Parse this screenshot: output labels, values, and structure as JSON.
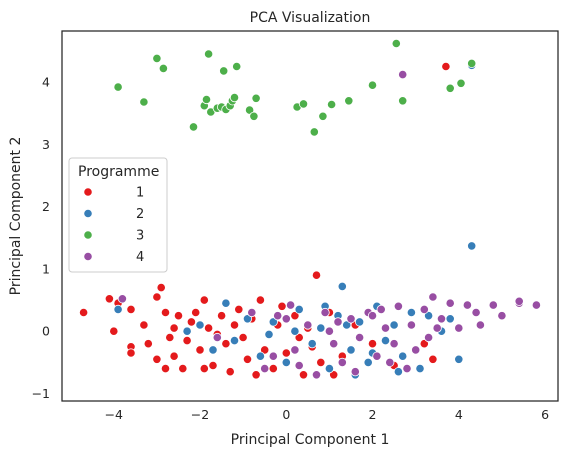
{
  "chart_data": {
    "type": "scatter",
    "title": "PCA Visualization",
    "xlabel": "Principal Component 1",
    "ylabel": "Principal Component 2",
    "xlim": [
      -5.2,
      6.3
    ],
    "ylim": [
      -1.12,
      4.82
    ],
    "xticks": [
      -4,
      -2,
      0,
      2,
      4,
      6
    ],
    "yticks": [
      -1,
      0,
      1,
      2,
      3,
      4
    ],
    "grid": false,
    "legend": {
      "title": "Programme",
      "placement": "center-left"
    },
    "series": [
      {
        "name": "1",
        "color": "#e41a1c",
        "points": [
          [
            -4.7,
            0.3
          ],
          [
            -4.1,
            0.52
          ],
          [
            -4.0,
            0.0
          ],
          [
            -3.9,
            0.45
          ],
          [
            -3.6,
            0.35
          ],
          [
            -3.6,
            -0.25
          ],
          [
            -3.6,
            -0.35
          ],
          [
            -3.0,
            0.55
          ],
          [
            -2.9,
            0.7
          ],
          [
            -2.8,
            0.3
          ],
          [
            -2.7,
            -0.1
          ],
          [
            -2.6,
            -0.4
          ],
          [
            -2.5,
            0.25
          ],
          [
            -2.4,
            -0.6
          ],
          [
            -2.2,
            0.15
          ],
          [
            -2.0,
            -0.3
          ],
          [
            -1.9,
            0.5
          ],
          [
            -1.8,
            0.05
          ],
          [
            -1.7,
            -0.55
          ],
          [
            -1.5,
            0.25
          ],
          [
            -1.4,
            -0.2
          ],
          [
            -1.3,
            -0.65
          ],
          [
            -1.1,
            0.35
          ],
          [
            -1.0,
            -0.1
          ],
          [
            -0.9,
            -0.45
          ],
          [
            -0.8,
            0.2
          ],
          [
            -0.6,
            0.5
          ],
          [
            -0.5,
            -0.3
          ],
          [
            -0.3,
            -0.6
          ],
          [
            -0.2,
            0.1
          ],
          [
            0.0,
            -0.35
          ],
          [
            0.2,
            0.25
          ],
          [
            0.4,
            -0.7
          ],
          [
            0.5,
            0.05
          ],
          [
            0.7,
            0.9
          ],
          [
            0.8,
            -0.5
          ],
          [
            1.0,
            0.3
          ],
          [
            1.3,
            -0.4
          ],
          [
            1.6,
            0.1
          ],
          [
            2.0,
            -0.2
          ],
          [
            2.5,
            -0.55
          ],
          [
            3.2,
            -0.2
          ],
          [
            3.4,
            -0.45
          ],
          [
            3.7,
            4.25
          ],
          [
            -3.3,
            0.1
          ],
          [
            -3.2,
            -0.2
          ],
          [
            -3.0,
            -0.45
          ],
          [
            -2.8,
            -0.6
          ],
          [
            -2.6,
            0.05
          ],
          [
            -2.3,
            -0.15
          ],
          [
            -2.1,
            0.3
          ],
          [
            -1.9,
            -0.6
          ],
          [
            -1.6,
            -0.05
          ],
          [
            -1.2,
            0.1
          ],
          [
            -0.7,
            -0.7
          ],
          [
            -0.1,
            0.4
          ],
          [
            0.3,
            -0.1
          ],
          [
            0.6,
            -0.25
          ],
          [
            1.1,
            -0.7
          ]
        ]
      },
      {
        "name": "2",
        "color": "#377eb8",
        "points": [
          [
            -3.9,
            0.35
          ],
          [
            -2.0,
            0.1
          ],
          [
            -1.4,
            0.45
          ],
          [
            -1.2,
            -0.15
          ],
          [
            -0.9,
            0.2
          ],
          [
            -0.6,
            -0.4
          ],
          [
            -0.3,
            0.15
          ],
          [
            0.0,
            -0.5
          ],
          [
            0.3,
            0.35
          ],
          [
            0.6,
            -0.2
          ],
          [
            0.8,
            0.05
          ],
          [
            1.0,
            -0.6
          ],
          [
            1.2,
            0.25
          ],
          [
            1.3,
            0.72
          ],
          [
            1.5,
            -0.3
          ],
          [
            1.7,
            0.15
          ],
          [
            1.9,
            -0.5
          ],
          [
            2.1,
            0.4
          ],
          [
            2.3,
            -0.15
          ],
          [
            2.5,
            0.1
          ],
          [
            2.7,
            -0.4
          ],
          [
            2.9,
            0.3
          ],
          [
            3.1,
            -0.6
          ],
          [
            3.6,
            0.0
          ],
          [
            3.8,
            0.2
          ],
          [
            4.0,
            -0.45
          ],
          [
            4.3,
            4.27
          ],
          [
            4.3,
            1.37
          ],
          [
            0.9,
            0.4
          ],
          [
            1.6,
            -0.7
          ],
          [
            -1.7,
            -0.3
          ],
          [
            -0.4,
            -0.05
          ],
          [
            2.0,
            -0.35
          ],
          [
            2.6,
            -0.65
          ],
          [
            0.2,
            0.0
          ],
          [
            -2.3,
            0.0
          ],
          [
            1.4,
            0.1
          ],
          [
            3.3,
            0.25
          ]
        ]
      },
      {
        "name": "3",
        "color": "#4daf4a",
        "points": [
          [
            -3.9,
            3.92
          ],
          [
            -3.3,
            3.68
          ],
          [
            -3.0,
            4.38
          ],
          [
            -2.85,
            4.22
          ],
          [
            -2.15,
            3.28
          ],
          [
            -1.9,
            3.62
          ],
          [
            -1.85,
            3.72
          ],
          [
            -1.8,
            4.45
          ],
          [
            -1.75,
            3.52
          ],
          [
            -1.6,
            3.58
          ],
          [
            -1.5,
            3.6
          ],
          [
            -1.45,
            4.18
          ],
          [
            -1.4,
            3.56
          ],
          [
            -1.3,
            3.62
          ],
          [
            -1.25,
            3.7
          ],
          [
            -1.2,
            3.75
          ],
          [
            -1.15,
            4.25
          ],
          [
            -0.85,
            3.55
          ],
          [
            -0.75,
            3.45
          ],
          [
            -0.7,
            3.74
          ],
          [
            0.25,
            3.6
          ],
          [
            0.4,
            3.65
          ],
          [
            0.65,
            3.2
          ],
          [
            0.85,
            3.45
          ],
          [
            1.05,
            3.64
          ],
          [
            1.45,
            3.7
          ],
          [
            2.0,
            3.95
          ],
          [
            2.55,
            4.62
          ],
          [
            2.7,
            3.7
          ],
          [
            3.8,
            3.9
          ],
          [
            4.05,
            3.98
          ],
          [
            4.3,
            4.3
          ]
        ]
      },
      {
        "name": "4",
        "color": "#984ea3",
        "points": [
          [
            -3.8,
            0.52
          ],
          [
            -1.6,
            -0.1
          ],
          [
            -0.8,
            0.3
          ],
          [
            -0.5,
            -0.6
          ],
          [
            -0.2,
            0.25
          ],
          [
            0.1,
            0.42
          ],
          [
            0.2,
            -0.3
          ],
          [
            0.5,
            0.1
          ],
          [
            0.7,
            -0.7
          ],
          [
            0.9,
            0.3
          ],
          [
            1.1,
            -0.2
          ],
          [
            1.3,
            -0.5
          ],
          [
            1.5,
            0.2
          ],
          [
            1.7,
            -0.1
          ],
          [
            1.9,
            0.3
          ],
          [
            2.1,
            -0.4
          ],
          [
            2.3,
            0.05
          ],
          [
            2.5,
            -0.2
          ],
          [
            2.6,
            0.4
          ],
          [
            2.8,
            -0.6
          ],
          [
            2.9,
            0.1
          ],
          [
            3.0,
            -0.3
          ],
          [
            3.2,
            0.35
          ],
          [
            3.4,
            0.55
          ],
          [
            3.6,
            0.2
          ],
          [
            3.8,
            0.45
          ],
          [
            4.0,
            0.05
          ],
          [
            4.2,
            0.42
          ],
          [
            4.5,
            0.1
          ],
          [
            4.8,
            0.42
          ],
          [
            5.0,
            0.25
          ],
          [
            5.4,
            0.45
          ],
          [
            5.8,
            0.42
          ],
          [
            2.7,
            4.12
          ],
          [
            1.2,
            0.15
          ],
          [
            2.0,
            0.25
          ],
          [
            0.3,
            -0.55
          ],
          [
            1.6,
            -0.65
          ],
          [
            2.4,
            -0.5
          ],
          [
            3.3,
            -0.1
          ],
          [
            0.0,
            0.2
          ],
          [
            -0.3,
            -0.4
          ],
          [
            1.0,
            0.0
          ],
          [
            2.2,
            0.35
          ],
          [
            3.5,
            0.05
          ],
          [
            4.4,
            0.3
          ],
          [
            5.4,
            0.48
          ]
        ]
      }
    ]
  }
}
